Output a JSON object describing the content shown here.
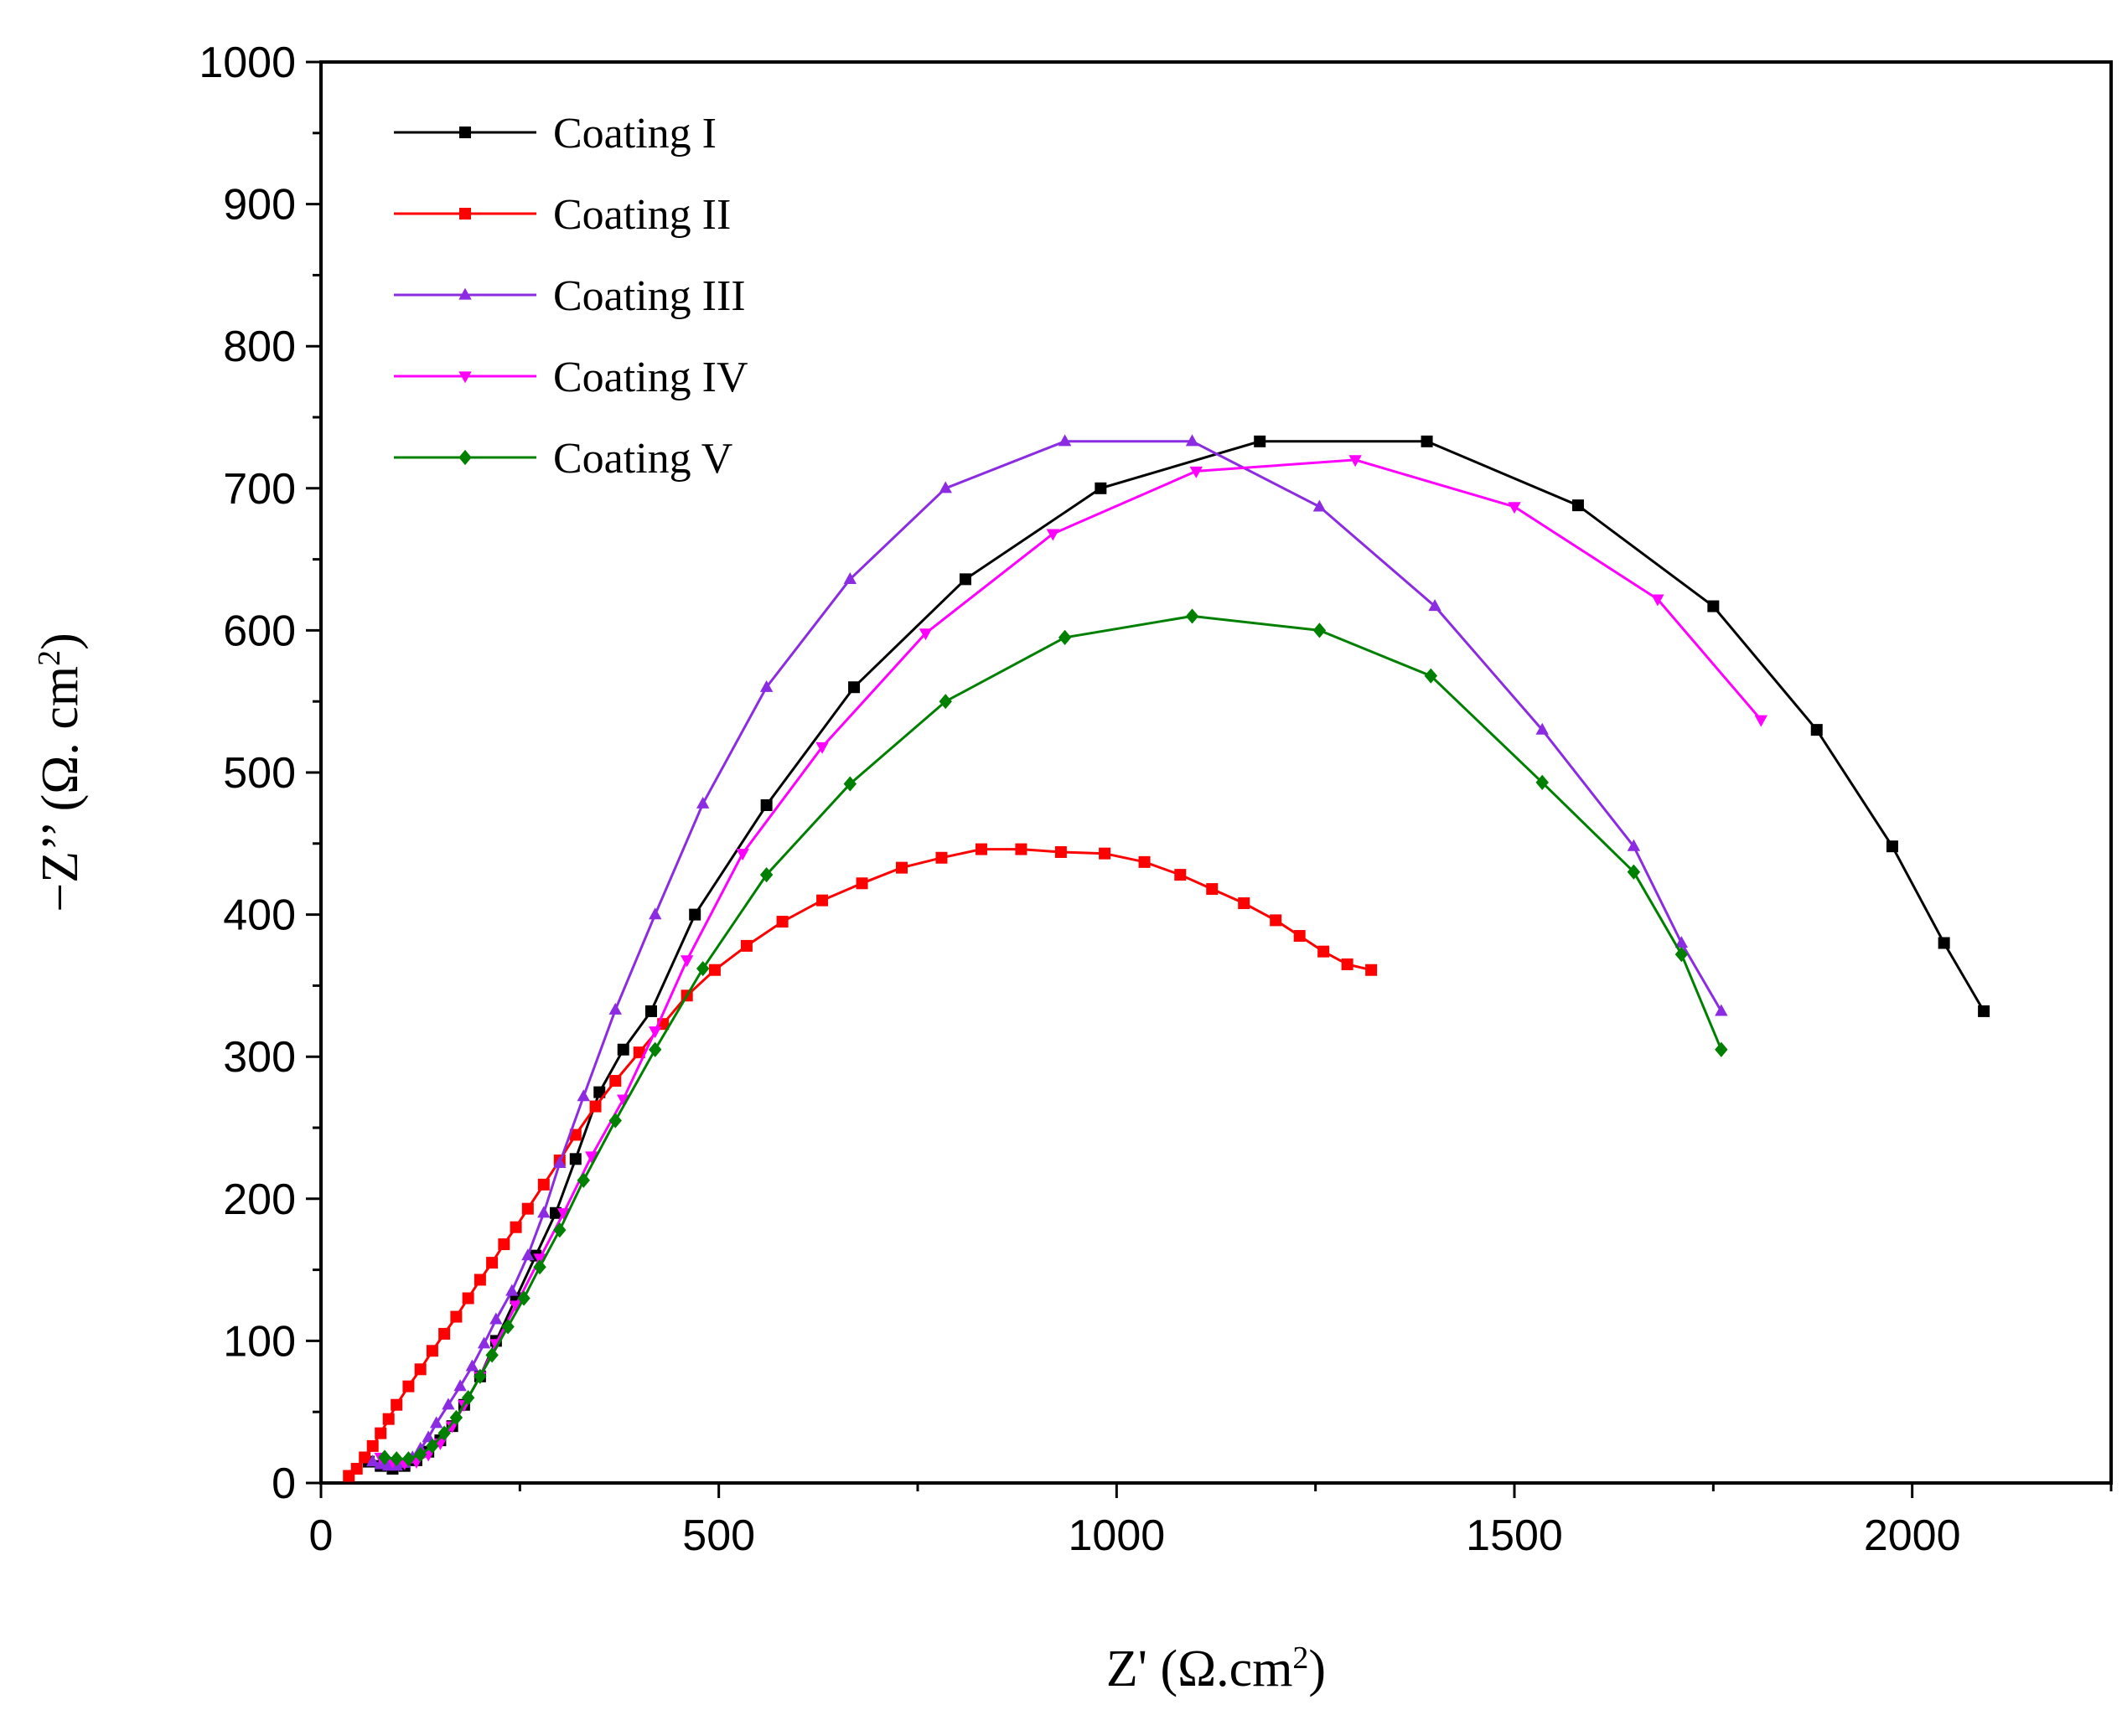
{
  "chart_data": {
    "type": "line",
    "title": "",
    "xlabel": {
      "main": "Z' (Ω.cm",
      "sup": "2",
      "close": ")"
    },
    "ylabel": {
      "main": "−Z’’ (Ω. cm",
      "sup": "2",
      "close": ")"
    },
    "xlim": [
      0,
      2250
    ],
    "ylim": [
      0,
      1000
    ],
    "xticks": [
      0,
      500,
      1000,
      1500,
      2000
    ],
    "yticks": [
      0,
      100,
      200,
      300,
      400,
      500,
      600,
      700,
      800,
      900,
      1000
    ],
    "legend_position": "top-left",
    "series": [
      {
        "name": "Coating I",
        "color": "#000000",
        "marker": "square",
        "x": [
          60,
          75,
          90,
          105,
          120,
          135,
          150,
          165,
          180,
          200,
          220,
          245,
          270,
          295,
          320,
          350,
          380,
          415,
          470,
          560,
          670,
          810,
          980,
          1180,
          1390,
          1580,
          1750,
          1880,
          1975,
          2040,
          2090
        ],
        "y": [
          15,
          12,
          10,
          12,
          16,
          22,
          30,
          40,
          55,
          75,
          100,
          130,
          160,
          190,
          228,
          275,
          305,
          332,
          400,
          477,
          560,
          636,
          700,
          733,
          733,
          688,
          617,
          530,
          448,
          380,
          332
        ]
      },
      {
        "name": "Coating II",
        "color": "#ff0000",
        "marker": "square",
        "x": [
          35,
          45,
          55,
          65,
          75,
          85,
          95,
          110,
          125,
          140,
          155,
          170,
          185,
          200,
          215,
          230,
          245,
          260,
          280,
          300,
          320,
          345,
          370,
          400,
          430,
          460,
          495,
          535,
          580,
          630,
          680,
          730,
          780,
          830,
          880,
          930,
          985,
          1035,
          1080,
          1120,
          1160,
          1200,
          1230,
          1260,
          1290,
          1320
        ],
        "y": [
          5,
          10,
          18,
          26,
          35,
          45,
          55,
          68,
          80,
          93,
          105,
          117,
          130,
          143,
          155,
          168,
          180,
          193,
          210,
          227,
          245,
          265,
          283,
          303,
          323,
          343,
          361,
          378,
          395,
          410,
          422,
          433,
          440,
          446,
          446,
          444,
          443,
          437,
          428,
          418,
          408,
          396,
          385,
          374,
          365,
          361
        ]
      },
      {
        "name": "Coating III",
        "color": "#8b2be2",
        "marker": "triangle-up",
        "x": [
          65,
          75,
          85,
          95,
          105,
          115,
          125,
          135,
          145,
          160,
          175,
          190,
          205,
          220,
          240,
          260,
          280,
          300,
          330,
          370,
          420,
          480,
          560,
          665,
          785,
          935,
          1095,
          1255,
          1400,
          1535,
          1650,
          1710,
          1760
        ],
        "y": [
          15,
          13,
          12,
          12,
          14,
          18,
          24,
          32,
          42,
          55,
          68,
          82,
          98,
          115,
          135,
          160,
          190,
          225,
          272,
          333,
          400,
          478,
          560,
          636,
          700,
          733,
          733,
          687,
          617,
          530,
          448,
          380,
          332
        ]
      },
      {
        "name": "Coating IV",
        "color": "#ff00ff",
        "marker": "triangle-down",
        "x": [
          75,
          90,
          105,
          120,
          135,
          150,
          165,
          180,
          200,
          220,
          245,
          275,
          305,
          340,
          380,
          420,
          460,
          530,
          630,
          760,
          920,
          1100,
          1300,
          1500,
          1680,
          1810
        ],
        "y": [
          18,
          15,
          14,
          15,
          20,
          28,
          40,
          55,
          75,
          98,
          125,
          158,
          190,
          230,
          270,
          318,
          368,
          443,
          518,
          598,
          668,
          712,
          720,
          687,
          622,
          537
        ]
      },
      {
        "name": "Coating V",
        "color": "#008000",
        "marker": "diamond",
        "x": [
          80,
          95,
          110,
          125,
          140,
          155,
          170,
          185,
          200,
          215,
          235,
          255,
          275,
          300,
          330,
          370,
          420,
          480,
          560,
          665,
          785,
          935,
          1095,
          1255,
          1395,
          1535,
          1650,
          1710,
          1760
        ],
        "y": [
          18,
          17,
          17,
          20,
          26,
          35,
          46,
          60,
          75,
          90,
          110,
          130,
          152,
          178,
          213,
          255,
          305,
          362,
          428,
          492,
          550,
          595,
          610,
          600,
          568,
          493,
          430,
          372,
          305
        ]
      }
    ]
  }
}
